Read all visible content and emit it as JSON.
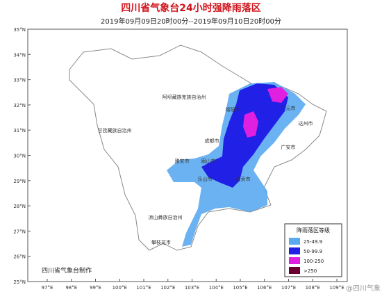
{
  "header": {
    "title": "四川省气象台24小时强降雨落区",
    "subtitle": "2019年09月09日20时00分--2019年09月10日20时00分"
  },
  "axes": {
    "lat_labels": [
      "35°N",
      "34°N",
      "33°N",
      "32°N",
      "31°N",
      "30°N",
      "29°N",
      "28°N",
      "27°N",
      "26°N",
      "25°N"
    ],
    "lon_labels": [
      "97°E",
      "98°E",
      "99°E",
      "100°E",
      "101°E",
      "102°E",
      "103°E",
      "104°E",
      "105°E",
      "106°E",
      "107°E",
      "108°E",
      "109°E"
    ]
  },
  "regions": [
    "阿坝藏族羌族自治州",
    "甘孜藏族自治州",
    "凉山彝族自治州",
    "成都市",
    "绵阳市",
    "广元市",
    "达州市",
    "广安市",
    "雅安市",
    "眉山市",
    "乐山市",
    "自贡市",
    "攀枝花市"
  ],
  "legend": {
    "title": "降雨落区等级",
    "items": [
      {
        "label": "25-49.9",
        "color": "#5aaaf0"
      },
      {
        "label": "50-99.9",
        "color": "#2020e6"
      },
      {
        "label": "100-250",
        "color": "#e020e0"
      },
      {
        "label": ">250",
        "color": "#6b0030"
      }
    ]
  },
  "footer": {
    "credit": "四川省气象台制作",
    "watermark": "@四川气象"
  }
}
